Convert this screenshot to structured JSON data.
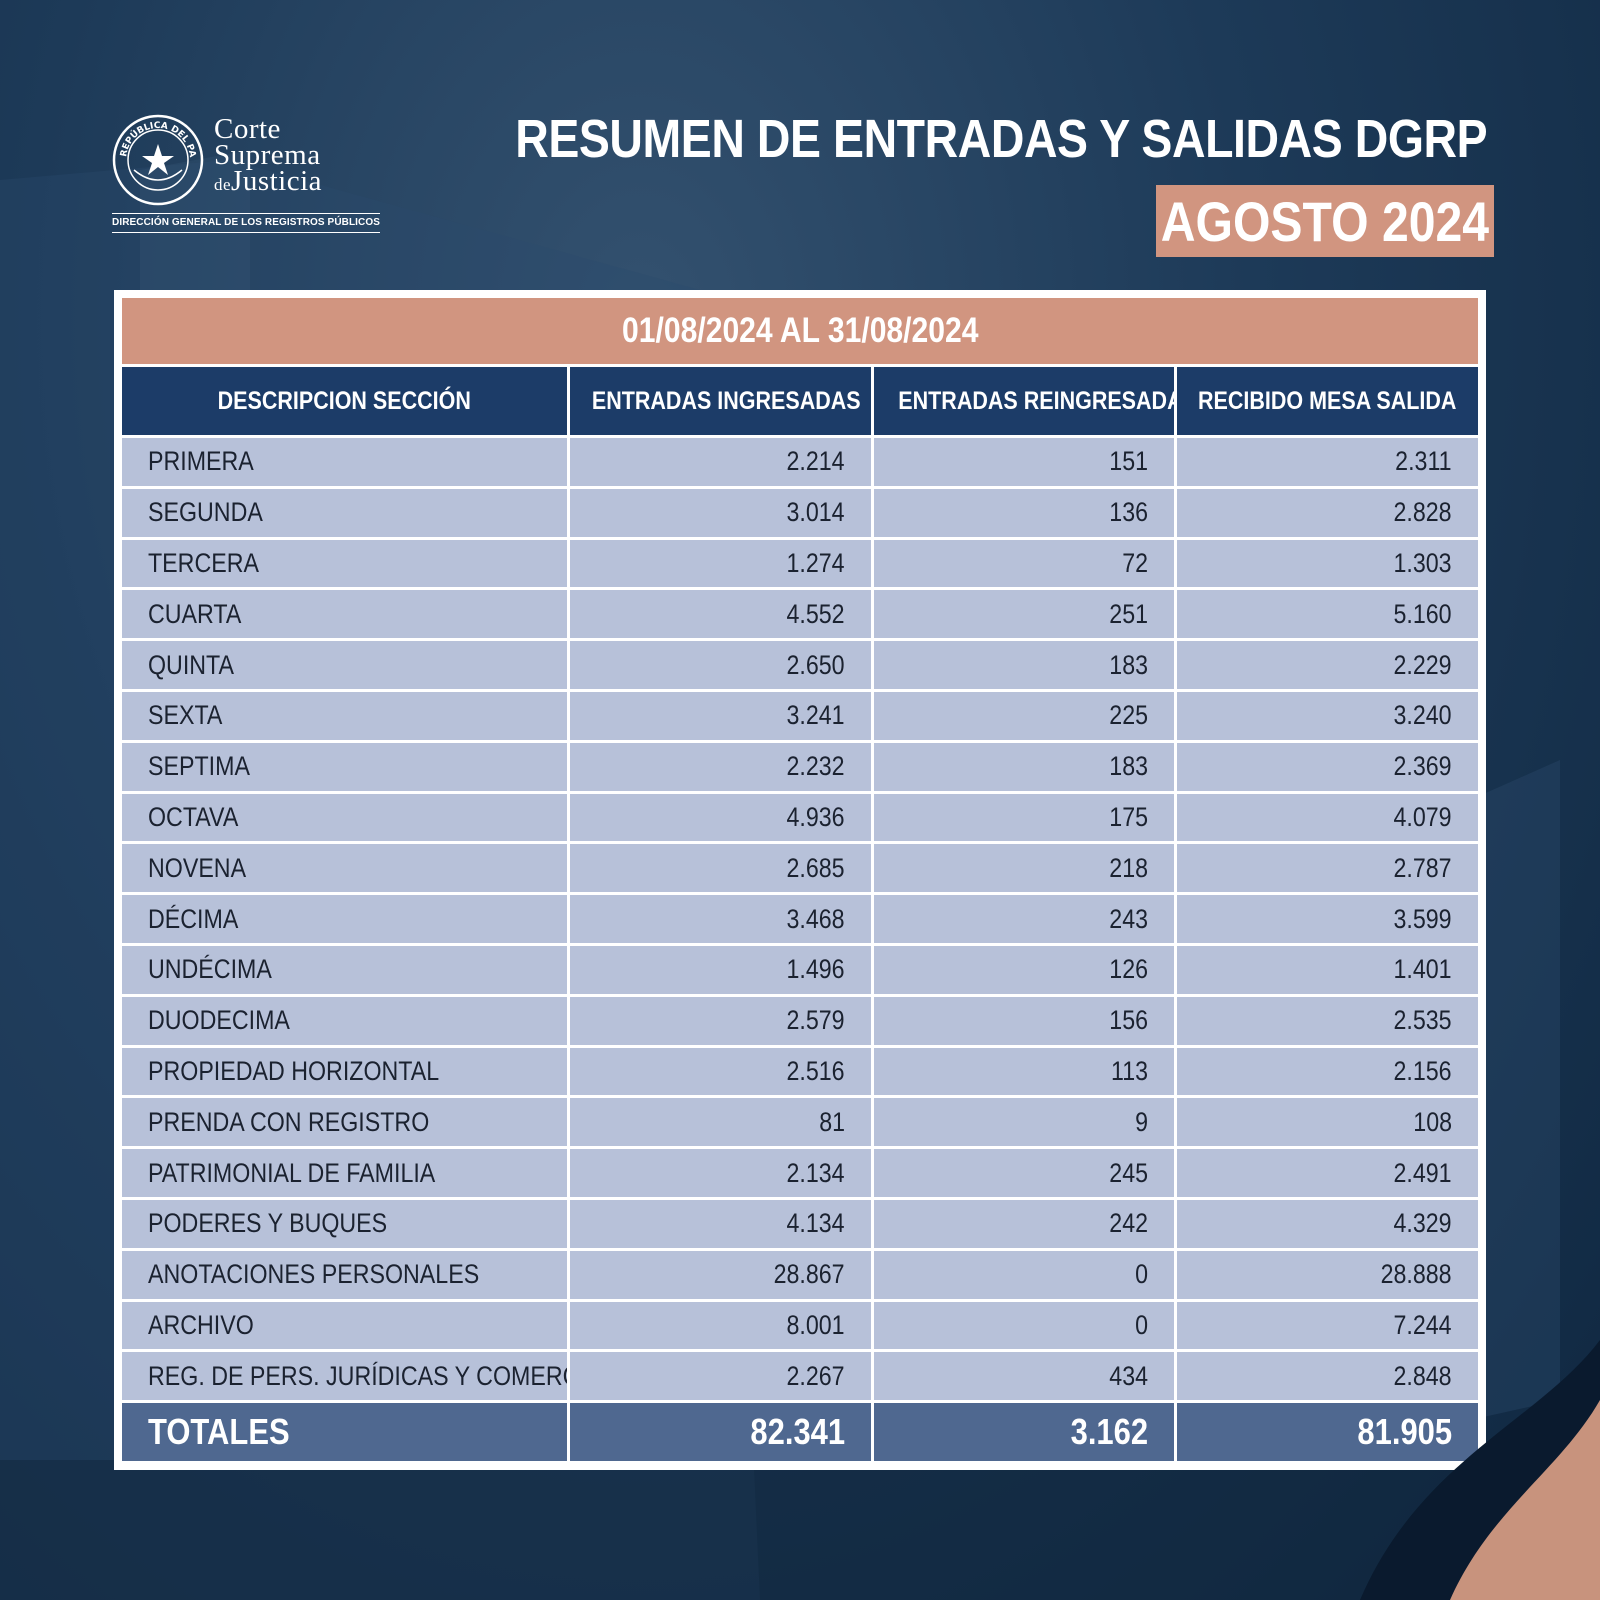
{
  "logo": {
    "line1": "Corte",
    "line2": "Suprema",
    "line3_prefix": "de",
    "line3": "Justicia",
    "seal_text": "REPÚBLICA DEL PARAGUAY",
    "subtitle": "DIRECCIÓN GENERAL DE LOS REGISTROS PÚBLICOS"
  },
  "header": {
    "title": "RESUMEN DE ENTRADAS Y SALIDAS DGRP",
    "month": "AGOSTO 2024"
  },
  "table": {
    "period": "01/08/2024 AL 31/08/2024",
    "columns": [
      "DESCRIPCION SECCIÓN",
      "ENTRADAS INGRESADAS",
      "ENTRADAS REINGRESADAS",
      "RECIBIDO MESA SALIDA"
    ],
    "rows": [
      {
        "section": "PRIMERA",
        "ingresadas": "2.214",
        "reingresadas": "151",
        "salida": "2.311"
      },
      {
        "section": "SEGUNDA",
        "ingresadas": "3.014",
        "reingresadas": "136",
        "salida": "2.828"
      },
      {
        "section": "TERCERA",
        "ingresadas": "1.274",
        "reingresadas": "72",
        "salida": "1.303"
      },
      {
        "section": "CUARTA",
        "ingresadas": "4.552",
        "reingresadas": "251",
        "salida": "5.160"
      },
      {
        "section": "QUINTA",
        "ingresadas": "2.650",
        "reingresadas": "183",
        "salida": "2.229"
      },
      {
        "section": "SEXTA",
        "ingresadas": "3.241",
        "reingresadas": "225",
        "salida": "3.240"
      },
      {
        "section": "SEPTIMA",
        "ingresadas": "2.232",
        "reingresadas": "183",
        "salida": "2.369"
      },
      {
        "section": "OCTAVA",
        "ingresadas": "4.936",
        "reingresadas": "175",
        "salida": "4.079"
      },
      {
        "section": "NOVENA",
        "ingresadas": "2.685",
        "reingresadas": "218",
        "salida": "2.787"
      },
      {
        "section": "DÉCIMA",
        "ingresadas": "3.468",
        "reingresadas": "243",
        "salida": "3.599"
      },
      {
        "section": "UNDÉCIMA",
        "ingresadas": "1.496",
        "reingresadas": "126",
        "salida": "1.401"
      },
      {
        "section": "DUODECIMA",
        "ingresadas": "2.579",
        "reingresadas": "156",
        "salida": "2.535"
      },
      {
        "section": "PROPIEDAD HORIZONTAL",
        "ingresadas": "2.516",
        "reingresadas": "113",
        "salida": "2.156"
      },
      {
        "section": "PRENDA CON REGISTRO",
        "ingresadas": "81",
        "reingresadas": "9",
        "salida": "108"
      },
      {
        "section": "PATRIMONIAL DE FAMILIA",
        "ingresadas": "2.134",
        "reingresadas": "245",
        "salida": "2.491"
      },
      {
        "section": "PODERES Y BUQUES",
        "ingresadas": "4.134",
        "reingresadas": "242",
        "salida": "4.329"
      },
      {
        "section": "ANOTACIONES PERSONALES",
        "ingresadas": "28.867",
        "reingresadas": "0",
        "salida": "28.888"
      },
      {
        "section": "ARCHIVO",
        "ingresadas": "8.001",
        "reingresadas": "0",
        "salida": "7.244"
      },
      {
        "section": "REG. DE PERS. JURÍDICAS Y COMERCIO",
        "ingresadas": "2.267",
        "reingresadas": "434",
        "salida": "2.848"
      }
    ],
    "totals": {
      "label": "TOTALES",
      "ingresadas": "82.341",
      "reingresadas": "3.162",
      "salida": "81.905"
    }
  },
  "colors": {
    "background": "#1d3a58",
    "accent": "#d19580",
    "header_cell": "#1c3c68",
    "row_cell": "#b7c1d9",
    "totals_cell": "#4f6890"
  }
}
